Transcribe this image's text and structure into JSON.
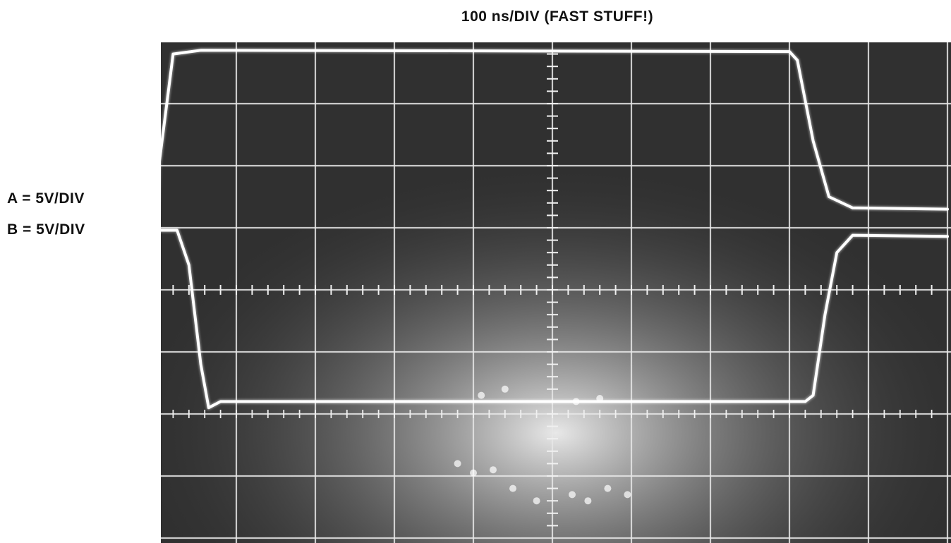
{
  "chart_data": {
    "type": "line",
    "title": "100 ns/DIV (FAST STUFF!)",
    "x_unit": "ns",
    "time_per_div_ns": 100,
    "volts_per_div": 5,
    "grid": true,
    "x_divisions": 10,
    "y_divisions": 8,
    "series": [
      {
        "name": "A = 5V/DIV",
        "x": [
          0,
          2,
          20,
          55,
          800,
          810,
          830,
          850,
          880,
          1000
        ],
        "y": [
          5.8,
          10,
          19,
          19.3,
          19.2,
          18.5,
          12,
          7.5,
          6.6,
          6.5
        ]
      },
      {
        "name": "B = 5V/DIV",
        "x": [
          0,
          25,
          40,
          55,
          65,
          80,
          820,
          830,
          845,
          860,
          880,
          1000
        ],
        "y": [
          4.8,
          4.8,
          2,
          -6,
          -9.5,
          -9,
          -9,
          -8.5,
          -2,
          3,
          4.4,
          4.3
        ]
      }
    ],
    "xlim": [
      0,
      1000
    ],
    "ylim": [
      -20,
      20
    ]
  }
}
